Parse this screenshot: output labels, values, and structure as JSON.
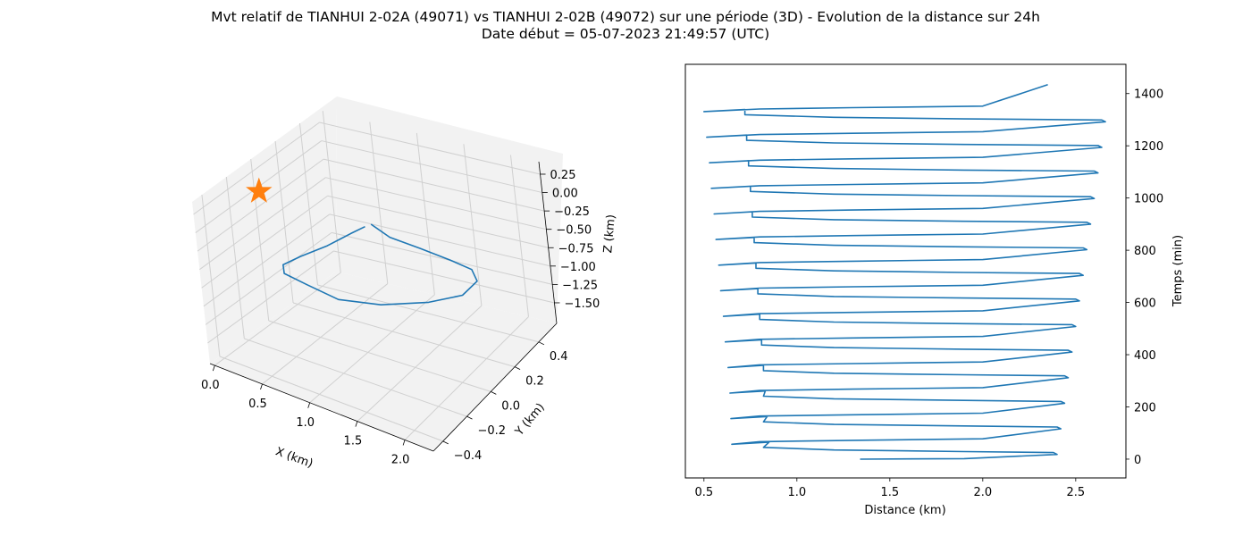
{
  "figure": {
    "title_line1": "Mvt relatif de TIANHUI 2-02A (49071) vs TIANHUI 2-02B (49072) sur une période (3D) - Evolution de la distance sur 24h",
    "title_line2": "Date début = 05-07-2023 21:49:57 (UTC)"
  },
  "colors": {
    "series": "#1f77b4",
    "marker": "#ff7f0e",
    "pane": "#f2f2f2",
    "grid": "#d0d0d0"
  },
  "chart_data": [
    {
      "type": "line3d",
      "xlabel": "X (km)",
      "ylabel": "Y (km)",
      "zlabel": "Z (km)",
      "xticks": [
        "0.0",
        "0.5",
        "1.0",
        "1.5",
        "2.0"
      ],
      "yticks": [
        "−0.4",
        "−0.2",
        "0.0",
        "0.2",
        "0.4"
      ],
      "zticks": [
        "0.25",
        "0.00",
        "−0.25",
        "−0.50",
        "−0.75",
        "−1.00",
        "−1.25",
        "−1.50"
      ],
      "xlim": [
        -0.05,
        2.3
      ],
      "ylim": [
        -0.48,
        0.55
      ],
      "zlim": [
        -1.78,
        0.42
      ],
      "grid": true,
      "marker": {
        "symbol": "star",
        "x": 0,
        "y": 0,
        "z": 0
      },
      "path": [
        [
          1.16,
          0.02,
          0.0
        ],
        [
          1.35,
          0.02,
          -0.1
        ],
        [
          1.58,
          0.08,
          -0.25
        ],
        [
          1.75,
          0.18,
          -0.5
        ],
        [
          1.8,
          0.3,
          -0.8
        ],
        [
          1.7,
          0.4,
          -1.15
        ],
        [
          1.45,
          0.45,
          -1.5
        ],
        [
          1.1,
          0.43,
          -1.68
        ],
        [
          0.72,
          0.33,
          -1.7
        ],
        [
          0.45,
          0.2,
          -1.55
        ],
        [
          0.3,
          0.08,
          -1.25
        ],
        [
          0.25,
          -0.05,
          -0.95
        ],
        [
          0.35,
          -0.12,
          -0.7
        ],
        [
          0.55,
          -0.12,
          -0.5
        ],
        [
          0.8,
          -0.08,
          -0.3
        ],
        [
          1.0,
          -0.03,
          -0.12
        ],
        [
          1.12,
          0.0,
          -0.02
        ]
      ]
    },
    {
      "type": "line",
      "xlabel": "Distance (km)",
      "ylabel": "Temps (min)",
      "xticks": [
        0.5,
        1.0,
        1.5,
        2.0,
        2.5
      ],
      "yticks": [
        0,
        200,
        400,
        600,
        800,
        1000,
        1200,
        1400
      ],
      "xlim": [
        0.4,
        2.77
      ],
      "ylim": [
        -72,
        1512
      ],
      "grid": false,
      "y_axis_side": "right",
      "series": [
        {
          "x": [
            1.34,
            1.9,
            2.4,
            2.38,
            1.9,
            1.2,
            0.82,
            0.85,
            0.65,
            0.8,
            1.3,
            2.0,
            2.42,
            2.4,
            1.9,
            1.2,
            0.82,
            0.84,
            0.645,
            0.8,
            1.3,
            2.0,
            2.44,
            2.42,
            1.9,
            1.2,
            0.82,
            0.83,
            0.64,
            0.8,
            1.3,
            2.0,
            2.46,
            2.44,
            1.9,
            1.2,
            0.82,
            0.82,
            0.63,
            0.8,
            1.3,
            2.0,
            2.48,
            2.46,
            1.9,
            1.2,
            0.81,
            0.81,
            0.615,
            0.8,
            1.3,
            2.0,
            2.5,
            2.48,
            1.9,
            1.2,
            0.8,
            0.8,
            0.605,
            0.8,
            1.3,
            2.0,
            2.52,
            2.5,
            1.9,
            1.2,
            0.79,
            0.79,
            0.59,
            0.8,
            1.3,
            2.0,
            2.54,
            2.52,
            1.9,
            1.2,
            0.78,
            0.78,
            0.58,
            0.8,
            1.3,
            2.0,
            2.56,
            2.54,
            1.9,
            1.2,
            0.77,
            0.77,
            0.565,
            0.8,
            1.3,
            2.0,
            2.58,
            2.56,
            1.9,
            1.2,
            0.76,
            0.76,
            0.555,
            0.8,
            1.3,
            2.0,
            2.6,
            2.58,
            1.9,
            1.2,
            0.75,
            0.75,
            0.54,
            0.8,
            1.3,
            2.0,
            2.62,
            2.6,
            1.9,
            1.2,
            0.74,
            0.74,
            0.53,
            0.8,
            1.3,
            2.0,
            2.64,
            2.62,
            1.9,
            1.2,
            0.73,
            0.73,
            0.515,
            0.8,
            1.3,
            2.0,
            2.66,
            2.64,
            1.9,
            1.2,
            0.72,
            0.72,
            0.5,
            0.8,
            1.3,
            2.0,
            2.35
          ],
          "y": [
            0,
            2,
            18,
            25,
            29,
            35,
            45,
            65,
            57,
            67,
            72,
            78,
            116,
            123,
            127,
            133,
            143,
            163,
            155,
            165,
            170,
            176,
            214,
            221,
            225,
            231,
            241,
            261,
            253,
            263,
            268,
            274,
            312,
            319,
            323,
            329,
            339,
            359,
            351,
            361,
            366,
            372,
            410,
            417,
            421,
            427,
            437,
            457,
            449,
            459,
            464,
            470,
            508,
            515,
            519,
            525,
            535,
            555,
            547,
            557,
            562,
            568,
            606,
            613,
            617,
            623,
            633,
            653,
            645,
            655,
            660,
            666,
            704,
            711,
            715,
            721,
            731,
            751,
            743,
            753,
            758,
            764,
            802,
            809,
            813,
            819,
            829,
            849,
            841,
            851,
            856,
            862,
            900,
            907,
            911,
            917,
            927,
            947,
            939,
            949,
            954,
            960,
            998,
            1005,
            1009,
            1015,
            1025,
            1045,
            1037,
            1047,
            1052,
            1058,
            1096,
            1103,
            1107,
            1113,
            1123,
            1143,
            1135,
            1145,
            1150,
            1156,
            1194,
            1201,
            1205,
            1211,
            1221,
            1241,
            1233,
            1243,
            1248,
            1254,
            1292,
            1299,
            1303,
            1309,
            1319,
            1339,
            1331,
            1341,
            1346,
            1352,
            1434
          ]
        }
      ]
    }
  ]
}
